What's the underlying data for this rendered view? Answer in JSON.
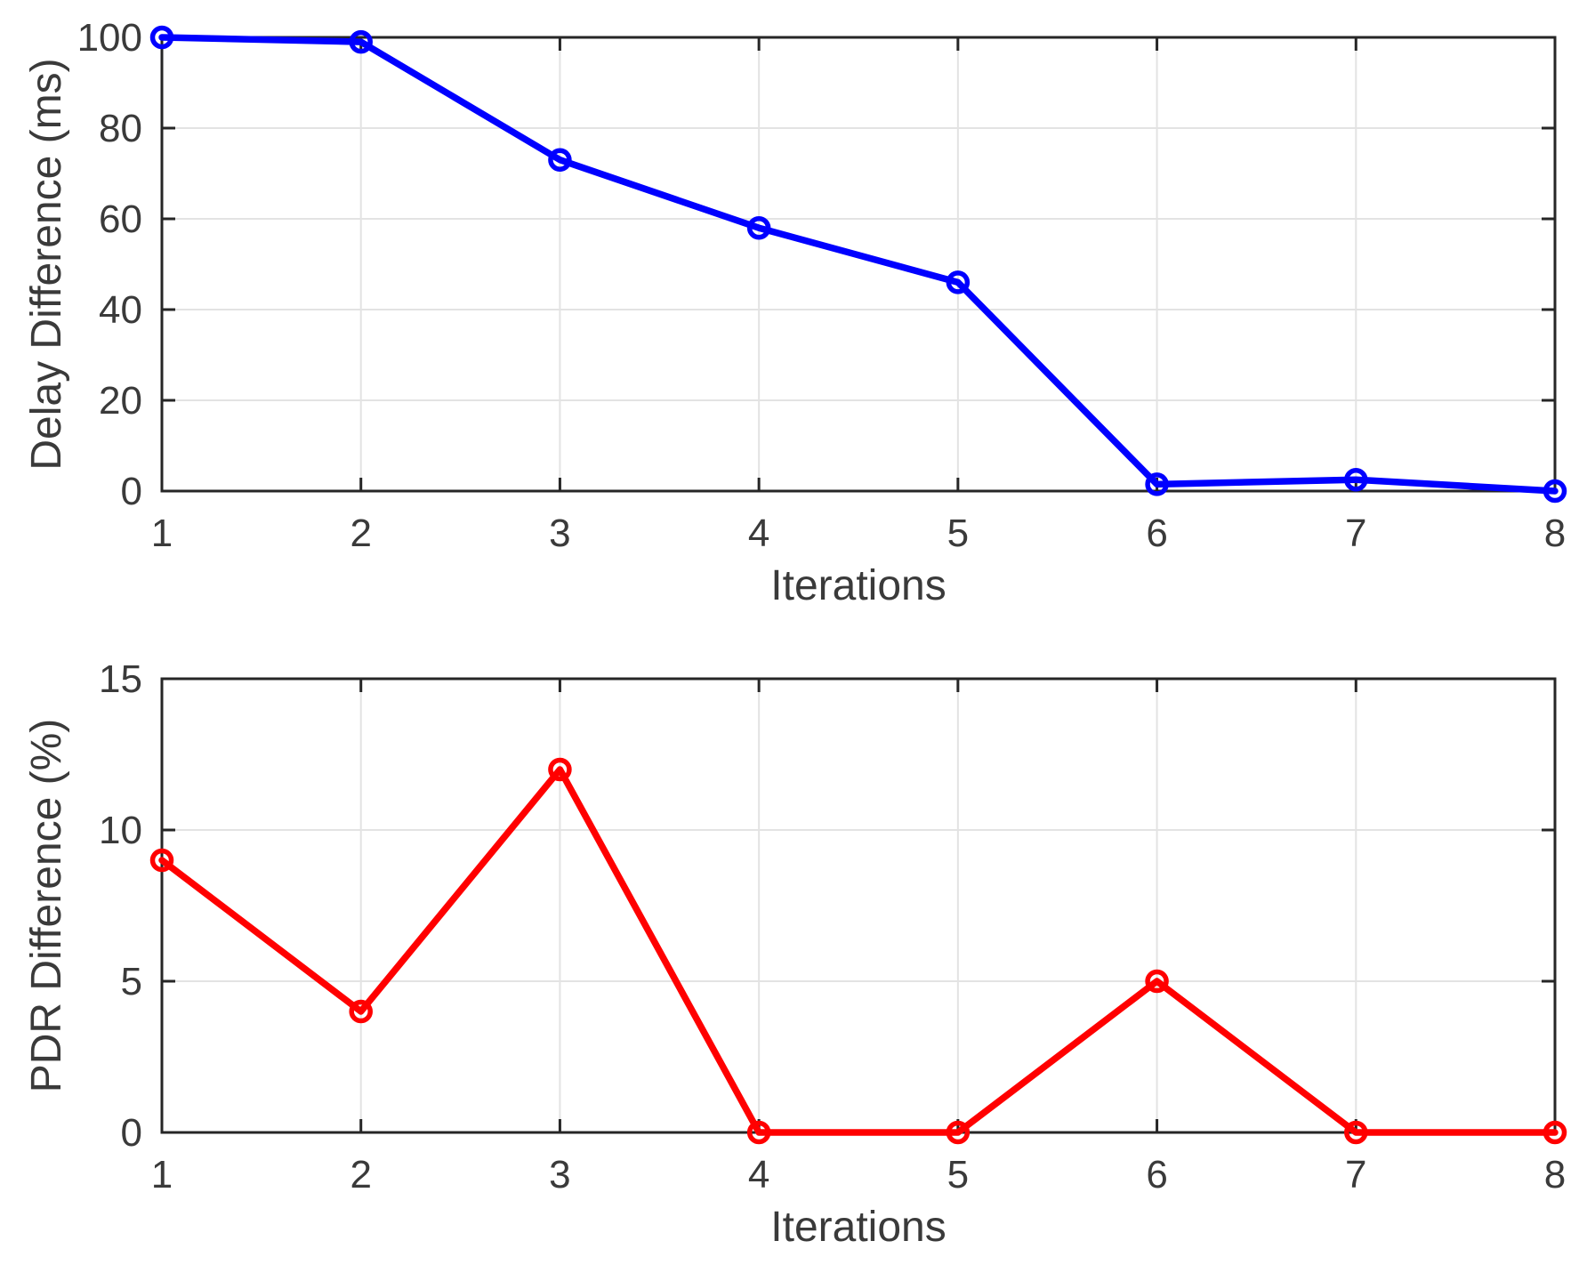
{
  "figure": {
    "background": "#ffffff"
  },
  "style": {
    "axis_color": "#262626",
    "tick_label_color": "#3a3a3a",
    "grid_color": "#e3e3e3",
    "plot_background": "#ffffff"
  },
  "chart_data": [
    {
      "type": "line",
      "title": "",
      "xlabel": "Iterations",
      "ylabel": "Delay Difference (ms)",
      "x": [
        1,
        2,
        3,
        4,
        5,
        6,
        7,
        8
      ],
      "series": [
        {
          "name": "Delay Difference",
          "color": "#0000FF",
          "marker": "circle",
          "values": [
            100,
            99,
            73,
            58,
            46,
            1.5,
            2.5,
            0
          ]
        }
      ],
      "xlim": [
        1,
        8
      ],
      "ylim": [
        0,
        100
      ],
      "xticks": [
        1,
        2,
        3,
        4,
        5,
        6,
        7,
        8
      ],
      "yticks": [
        0,
        20,
        40,
        60,
        80,
        100
      ],
      "grid": true,
      "box": true,
      "legend": null
    },
    {
      "type": "line",
      "title": "",
      "xlabel": "Iterations",
      "ylabel": "PDR Difference (%)",
      "x": [
        1,
        2,
        3,
        4,
        5,
        6,
        7,
        8
      ],
      "series": [
        {
          "name": "PDR Difference",
          "color": "#FF0000",
          "marker": "circle",
          "values": [
            9,
            4,
            12,
            0,
            0,
            5,
            0,
            0
          ]
        }
      ],
      "xlim": [
        1,
        8
      ],
      "ylim": [
        0,
        15
      ],
      "xticks": [
        1,
        2,
        3,
        4,
        5,
        6,
        7,
        8
      ],
      "yticks": [
        0,
        5,
        10,
        15
      ],
      "grid": true,
      "box": true,
      "legend": null
    }
  ]
}
